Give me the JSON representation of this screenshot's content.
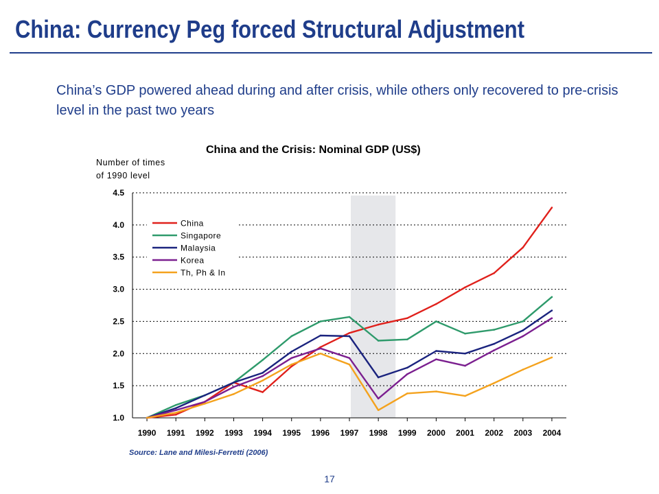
{
  "slide": {
    "title": "China: Currency Peg forced Structural Adjustment",
    "subtitle": "China’s GDP powered ahead during and after crisis, while others only recovered to pre-crisis level in the past two years",
    "source": "Source: Lane and Milesi-Ferretti (2006)",
    "page_number": "17"
  },
  "colors": {
    "title": "#1f3d8a",
    "China": "#e0201b",
    "Singapore": "#2e9a6b",
    "Malaysia": "#1a237e",
    "Korea": "#7b1f8f",
    "Th, Ph & In": "#f4a21d",
    "crisis_shade": "#e6e7ea"
  },
  "chart_data": {
    "type": "line",
    "title": "China and the Crisis: Nominal GDP (US$)",
    "ylabel": [
      "Number of times",
      "of 1990 level"
    ],
    "x": [
      "1990",
      "1991",
      "1992",
      "1993",
      "1994",
      "1995",
      "1996",
      "1997",
      "1998",
      "1999",
      "2000",
      "2001",
      "2002",
      "2003",
      "2004"
    ],
    "ylim": [
      1.0,
      4.5
    ],
    "yticks": [
      "1.0",
      "1.5",
      "2.0",
      "2.5",
      "3.0",
      "3.5",
      "4.0",
      "4.5"
    ],
    "grid": "horizontal dashed",
    "legend_position": "top-left",
    "shaded_region": [
      "1997",
      "1998"
    ],
    "series": [
      {
        "name": "China",
        "values": [
          1.0,
          1.05,
          1.25,
          1.55,
          1.4,
          1.8,
          2.1,
          2.32,
          2.45,
          2.55,
          2.77,
          3.03,
          3.25,
          3.65,
          4.27
        ]
      },
      {
        "name": "Singapore",
        "values": [
          1.0,
          1.2,
          1.35,
          1.55,
          1.9,
          2.27,
          2.5,
          2.57,
          2.2,
          2.22,
          2.5,
          2.31,
          2.37,
          2.5,
          2.88
        ]
      },
      {
        "name": "Malaysia",
        "values": [
          1.0,
          1.15,
          1.35,
          1.55,
          1.7,
          2.03,
          2.28,
          2.27,
          1.63,
          1.78,
          2.04,
          2.0,
          2.15,
          2.36,
          2.67
        ]
      },
      {
        "name": "Korea",
        "values": [
          1.0,
          1.12,
          1.25,
          1.48,
          1.65,
          1.93,
          2.08,
          1.93,
          1.3,
          1.68,
          1.91,
          1.81,
          2.05,
          2.27,
          2.55
        ]
      },
      {
        "name": "Th, Ph & In",
        "values": [
          1.0,
          1.08,
          1.22,
          1.37,
          1.58,
          1.83,
          2.0,
          1.83,
          1.12,
          1.38,
          1.41,
          1.34,
          1.54,
          1.75,
          1.94
        ]
      }
    ]
  }
}
